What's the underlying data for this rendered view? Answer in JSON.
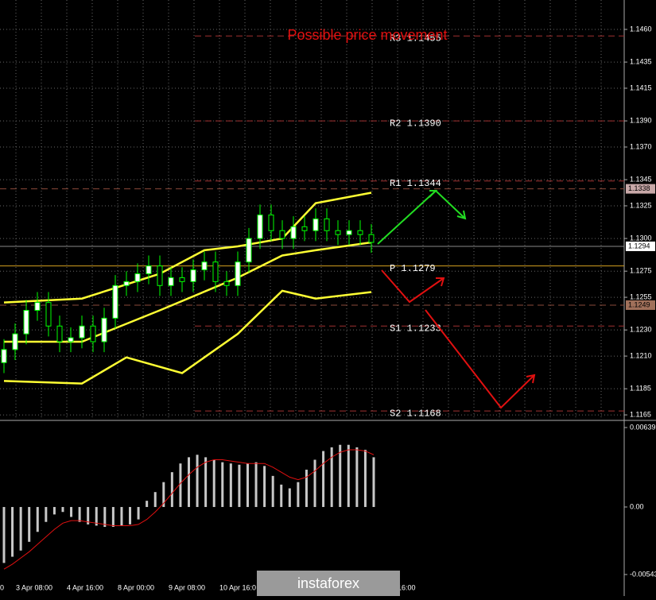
{
  "chart_data": {
    "type": "candlestick",
    "title": "Possible price movement",
    "ylim": [
      1.1162,
      1.14825
    ],
    "yticks": [
      {
        "value": 1.146,
        "label": "1.1460"
      },
      {
        "value": 1.1435,
        "label": "1.1435"
      },
      {
        "value": 1.1415,
        "label": "1.1415"
      },
      {
        "value": 1.139,
        "label": "1.1390"
      },
      {
        "value": 1.137,
        "label": "1.1370"
      },
      {
        "value": 1.1345,
        "label": "1.1345"
      },
      {
        "value": 1.1325,
        "label": "1.1325"
      },
      {
        "value": 1.13,
        "label": "1.1300"
      },
      {
        "value": 1.1275,
        "label": "1.1275"
      },
      {
        "value": 1.1255,
        "label": "1.1255"
      },
      {
        "value": 1.123,
        "label": "1.1230"
      },
      {
        "value": 1.121,
        "label": "1.1210"
      },
      {
        "value": 1.1185,
        "label": "1.1185"
      },
      {
        "value": 1.1165,
        "label": "1.1165"
      }
    ],
    "grid": true,
    "candles": {
      "up_color": "#ffffff",
      "down_color": "#000000",
      "edge_color": "#00ff00",
      "open": [
        1.1205,
        1.1215,
        1.1227,
        1.1245,
        1.1251,
        1.1233,
        1.1221,
        1.1224,
        1.1233,
        1.1221,
        1.1239,
        1.1264,
        1.1267,
        1.1273,
        1.1279,
        1.1264,
        1.127,
        1.1267,
        1.1276,
        1.1282,
        1.1267,
        1.1264,
        1.1282,
        1.13,
        1.1318,
        1.1306,
        1.13,
        1.1309,
        1.1306,
        1.1315,
        1.1306,
        1.1303,
        1.1306,
        1.1303
      ],
      "high": [
        1.1223,
        1.1235,
        1.1253,
        1.1259,
        1.1259,
        1.1241,
        1.1232,
        1.1241,
        1.1241,
        1.1247,
        1.1272,
        1.1275,
        1.1281,
        1.1287,
        1.1287,
        1.1278,
        1.1278,
        1.1284,
        1.129,
        1.129,
        1.1275,
        1.129,
        1.1308,
        1.1326,
        1.1326,
        1.1314,
        1.1317,
        1.1317,
        1.1323,
        1.1323,
        1.1314,
        1.1314,
        1.1314,
        1.1311
      ],
      "low": [
        1.1197,
        1.1207,
        1.1219,
        1.1237,
        1.1225,
        1.1213,
        1.1213,
        1.1216,
        1.1213,
        1.1213,
        1.1231,
        1.1256,
        1.1259,
        1.1265,
        1.1256,
        1.1256,
        1.1259,
        1.1259,
        1.1268,
        1.1259,
        1.1256,
        1.1256,
        1.1274,
        1.1292,
        1.1298,
        1.1292,
        1.1292,
        1.1298,
        1.1298,
        1.1298,
        1.1295,
        1.1295,
        1.1295,
        1.1289
      ],
      "close": [
        1.1215,
        1.1227,
        1.1245,
        1.1251,
        1.1233,
        1.1221,
        1.1224,
        1.1233,
        1.1221,
        1.1239,
        1.1264,
        1.1267,
        1.1273,
        1.1279,
        1.1264,
        1.127,
        1.1267,
        1.1276,
        1.1282,
        1.1267,
        1.1264,
        1.1282,
        1.13,
        1.1318,
        1.1306,
        1.13,
        1.1309,
        1.1306,
        1.1315,
        1.1306,
        1.1303,
        1.1306,
        1.1303,
        1.1297
      ]
    },
    "bands": [
      {
        "color": "#ffff33",
        "x": [
          0,
          7,
          14,
          18,
          21,
          25,
          28,
          33
        ],
        "values": [
          1.1251,
          1.1254,
          1.1273,
          1.1291,
          1.1294,
          1.13,
          1.1327,
          1.1335
        ]
      },
      {
        "color": "#ffff33",
        "x": [
          0,
          7,
          14,
          21,
          25,
          28,
          33
        ],
        "values": [
          1.1221,
          1.1221,
          1.1245,
          1.127,
          1.1287,
          1.1291,
          1.1297
        ]
      },
      {
        "color": "#ffff33",
        "x": [
          0,
          7,
          11,
          16,
          21,
          25,
          28,
          33
        ],
        "values": [
          1.1191,
          1.1189,
          1.1209,
          1.1197,
          1.1227,
          1.126,
          1.1254,
          1.1259
        ]
      }
    ],
    "levels": [
      {
        "label": "R3 1.1455",
        "value": 1.1455
      },
      {
        "label": "R2 1.1390",
        "value": 1.139
      },
      {
        "label": "R1 1.1344",
        "value": 1.1344
      },
      {
        "label": "P 1.1279",
        "value": 1.1279
      },
      {
        "label": "S1 1.1233",
        "value": 1.1233
      },
      {
        "label": "S2 1.1168",
        "value": 1.1168
      }
    ],
    "price_tags": [
      {
        "value": 1.1338,
        "label": "1.1338",
        "color": "#c8a8a8"
      },
      {
        "value": 1.1294,
        "label": "1.1294",
        "color": "#ffffff"
      },
      {
        "value": 1.1249,
        "label": "1.1249",
        "color": "#a0705a"
      }
    ],
    "x_labels": [
      "0",
      "3 Apr 08:00",
      "4 Apr 16:00",
      "8 Apr 00:00",
      "9 Apr 08:00",
      "10 Apr 16:0",
      "16:00"
    ],
    "oscillator": {
      "type": "bar",
      "ylim": [
        -0.00684,
        0.0069
      ],
      "yticks": [
        {
          "value": 0.00639,
          "label": "0.00639"
        },
        {
          "value": 0,
          "label": "0.00"
        },
        {
          "value": -0.00543,
          "label": "-0.00543"
        }
      ],
      "color": "#c8c8c8",
      "signal_color": "#e01010",
      "values": [
        -0.0045,
        -0.004,
        -0.0035,
        -0.0028,
        -0.002,
        -0.0012,
        -0.0006,
        -0.0004,
        -0.0008,
        -0.0012,
        -0.0014,
        -0.0015,
        -0.0016,
        -0.0016,
        -0.0015,
        -0.0014,
        -0.001,
        0.0005,
        0.0012,
        0.002,
        0.0028,
        0.0035,
        0.004,
        0.0042,
        0.004,
        0.0038,
        0.0036,
        0.0035,
        0.0034,
        0.0035,
        0.0036,
        0.0033,
        0.0025,
        0.0018,
        0.0015,
        0.002,
        0.003,
        0.0038,
        0.0045,
        0.0048,
        0.005,
        0.005,
        0.0048,
        0.0046,
        0.004
      ],
      "signal": [
        -0.005,
        -0.0046,
        -0.0041,
        -0.0036,
        -0.003,
        -0.0024,
        -0.0018,
        -0.0013,
        -0.0011,
        -0.0011,
        -0.0012,
        -0.0013,
        -0.0014,
        -0.0015,
        -0.0015,
        -0.0015,
        -0.0014,
        -0.001,
        -0.0004,
        0.0003,
        0.0011,
        0.0019,
        0.0026,
        0.0032,
        0.0036,
        0.0038,
        0.0038,
        0.0037,
        0.0036,
        0.0035,
        0.0035,
        0.0035,
        0.0032,
        0.0028,
        0.0024,
        0.0022,
        0.0024,
        0.0029,
        0.0035,
        0.004,
        0.0044,
        0.0046,
        0.0046,
        0.0045,
        0.0042
      ]
    }
  },
  "logo": "instaforex"
}
